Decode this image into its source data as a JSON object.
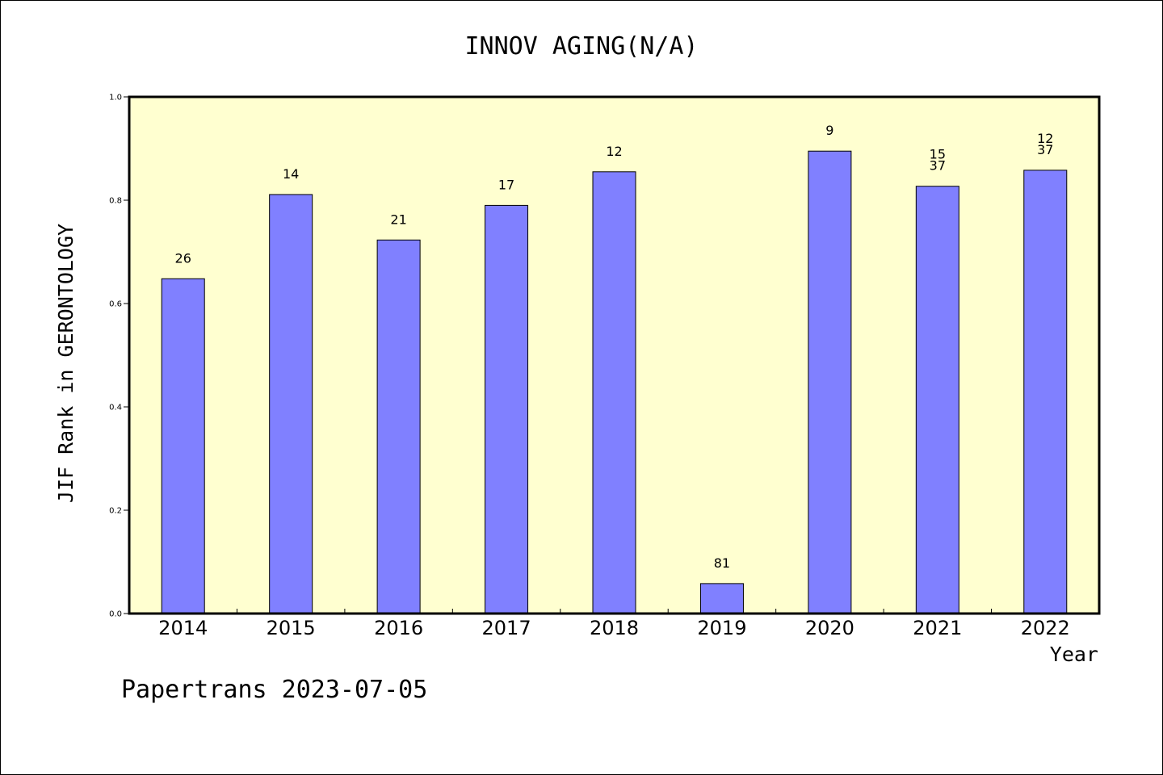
{
  "chart_data": {
    "type": "bar",
    "title": "INNOV AGING(N/A)",
    "xlabel": "Year",
    "ylabel": "JIF Rank in GERONTOLOGY",
    "ylim": [
      0,
      1.0
    ],
    "yticks": [
      "0.0",
      "0.2",
      "0.4",
      "0.6",
      "0.8",
      "1.0"
    ],
    "categories": [
      "2014",
      "2015",
      "2016",
      "2017",
      "2018",
      "2019",
      "2020",
      "2021",
      "2022"
    ],
    "values": [
      0.648,
      0.811,
      0.723,
      0.79,
      0.855,
      0.058,
      0.895,
      0.827,
      0.858
    ],
    "bar_labels": [
      [
        "26"
      ],
      [
        "14"
      ],
      [
        "21"
      ],
      [
        "17"
      ],
      [
        "12"
      ],
      [
        "81"
      ],
      [
        "9"
      ],
      [
        "15",
        "37"
      ],
      [
        "12",
        "37"
      ]
    ],
    "colors": {
      "bar": "#8080ff",
      "plot_background": "#ffffd0"
    },
    "grid": false,
    "legend": "none"
  },
  "footer": {
    "text": "Papertrans 2023-07-05"
  }
}
